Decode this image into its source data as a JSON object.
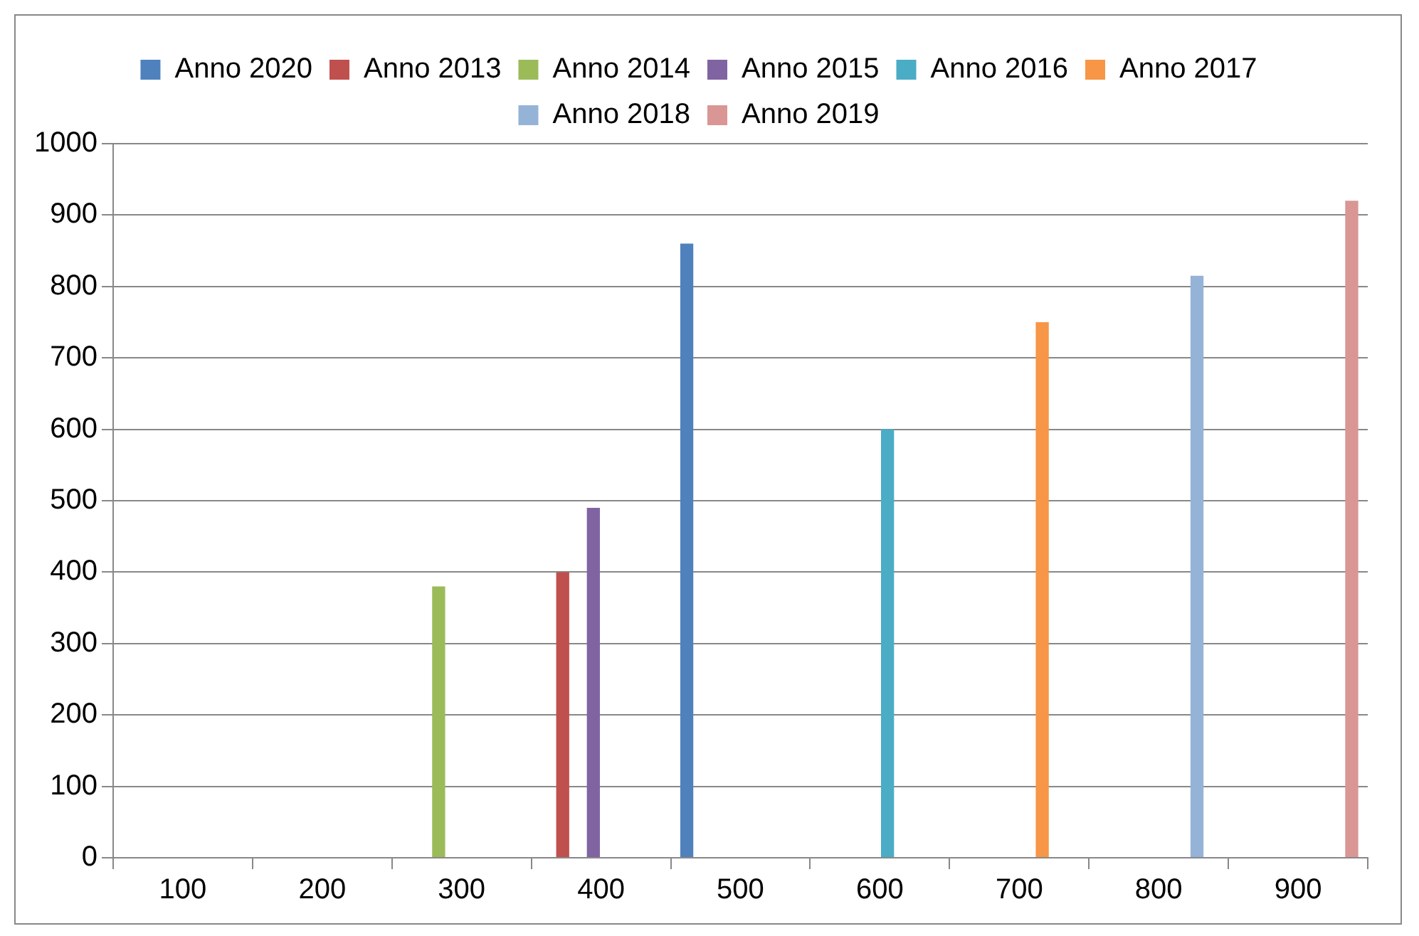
{
  "chart_data": {
    "type": "bar",
    "categories": [
      "100",
      "200",
      "300",
      "400",
      "500",
      "600",
      "700",
      "800",
      "900"
    ],
    "series": [
      {
        "name": "Anno 2020",
        "color": "#4f81bd",
        "values": [
          null,
          null,
          null,
          null,
          860,
          null,
          null,
          null,
          null
        ]
      },
      {
        "name": "Anno 2013",
        "color": "#c0504d",
        "values": [
          null,
          null,
          null,
          400,
          null,
          null,
          null,
          null,
          null
        ]
      },
      {
        "name": "Anno 2014",
        "color": "#9bbb59",
        "values": [
          null,
          null,
          380,
          null,
          null,
          null,
          null,
          null,
          null
        ]
      },
      {
        "name": "Anno 2015",
        "color": "#8064a2",
        "values": [
          null,
          null,
          null,
          490,
          null,
          null,
          null,
          null,
          null
        ]
      },
      {
        "name": "Anno 2016",
        "color": "#4bacc6",
        "values": [
          null,
          null,
          null,
          null,
          null,
          600,
          null,
          null,
          null
        ]
      },
      {
        "name": "Anno 2017",
        "color": "#f79646",
        "values": [
          null,
          null,
          null,
          null,
          null,
          null,
          750,
          null,
          null
        ]
      },
      {
        "name": "Anno 2018",
        "color": "#95b3d7",
        "values": [
          null,
          null,
          null,
          null,
          null,
          null,
          null,
          815,
          null
        ]
      },
      {
        "name": "Anno 2019",
        "color": "#d99694",
        "values": [
          null,
          null,
          null,
          null,
          null,
          null,
          null,
          null,
          920
        ]
      }
    ],
    "ylim": [
      0,
      1000
    ],
    "yticks": [
      0,
      100,
      200,
      300,
      400,
      500,
      600,
      700,
      800,
      900,
      1000
    ],
    "grid": "y",
    "legend": "top"
  }
}
